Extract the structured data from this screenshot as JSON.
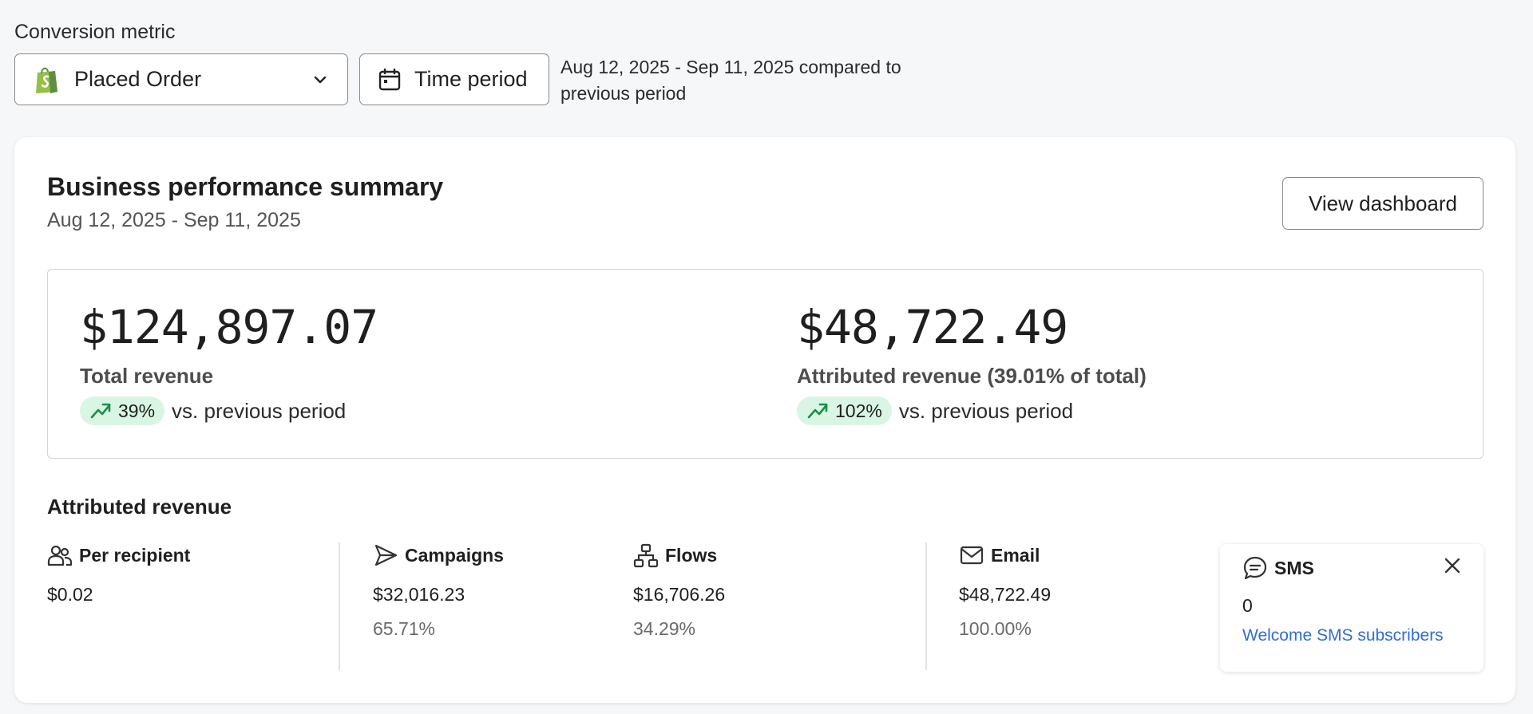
{
  "header": {
    "conversion_metric_label": "Conversion metric",
    "metric_select_value": "Placed Order",
    "time_period_label": "Time period",
    "compare_text": "Aug 12, 2025 - Sep 11, 2025 compared to previous period"
  },
  "summary": {
    "title": "Business performance summary",
    "date_range": "Aug 12, 2025 - Sep 11, 2025",
    "view_dashboard_label": "View dashboard"
  },
  "kpis": {
    "total": {
      "value": "$124,897.07",
      "label": "Total revenue",
      "change": "39%",
      "change_text": "vs. previous period"
    },
    "attributed": {
      "value": "$48,722.49",
      "label": "Attributed revenue (39.01% of total)",
      "change": "102%",
      "change_text": "vs. previous period"
    }
  },
  "attributed": {
    "title": "Attributed revenue",
    "per_recipient": {
      "label": "Per recipient",
      "value": "$0.02"
    },
    "campaigns": {
      "label": "Campaigns",
      "value": "$32,016.23",
      "share": "65.71%"
    },
    "flows": {
      "label": "Flows",
      "value": "$16,706.26",
      "share": "34.29%"
    },
    "email": {
      "label": "Email",
      "value": "$48,722.49",
      "share": "100.00%"
    },
    "sms": {
      "label": "SMS",
      "value": "0",
      "link": "Welcome SMS subscribers"
    }
  },
  "icons": {
    "shopify": "shopify-bag-icon",
    "calendar": "calendar-icon",
    "trend": "trending-up-icon",
    "recipients": "users-icon",
    "campaigns": "send-icon",
    "flows": "flow-icon",
    "email": "mail-icon",
    "sms": "chat-icon",
    "close": "close-icon"
  },
  "colors": {
    "positive_pill": "#d9f5e3",
    "trend_green": "#1a8f4a",
    "link_blue": "#2f6ed3",
    "shopify_green": "#95bf47"
  }
}
